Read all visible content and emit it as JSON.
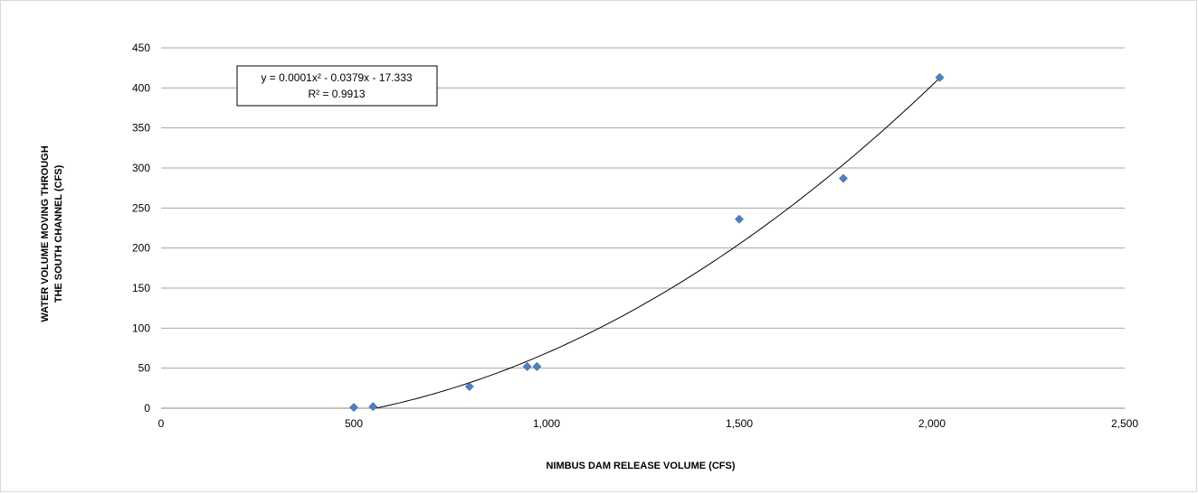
{
  "chart_data": {
    "type": "scatter",
    "xlabel": "NIMBUS DAM RELEASE VOLUME (CFS)",
    "ylabel_lines": [
      "WATER VOLUME MOVING THROUGH",
      "THE SOUTH CHANNEL (CFS)"
    ],
    "xlim": [
      0,
      2500
    ],
    "ylim": [
      0,
      450
    ],
    "x_ticks": [
      0,
      500,
      1000,
      1500,
      2000,
      2500
    ],
    "x_tick_labels": [
      "0",
      "500",
      "1,000",
      "1,500",
      "2,000",
      "2,500"
    ],
    "y_ticks": [
      0,
      50,
      100,
      150,
      200,
      250,
      300,
      350,
      400,
      450
    ],
    "y_tick_labels": [
      "0",
      "50",
      "100",
      "150",
      "200",
      "250",
      "300",
      "350",
      "400",
      "450"
    ],
    "grid": "horizontal",
    "series": [
      {
        "marker": "diamond",
        "color": "#4f81bd",
        "points": [
          {
            "x": 500,
            "y": 1
          },
          {
            "x": 550,
            "y": 2
          },
          {
            "x": 800,
            "y": 27
          },
          {
            "x": 950,
            "y": 52
          },
          {
            "x": 975,
            "y": 52
          },
          {
            "x": 1500,
            "y": 236
          },
          {
            "x": 1770,
            "y": 287
          },
          {
            "x": 2020,
            "y": 413
          }
        ]
      }
    ],
    "trendline": {
      "type": "polynomial",
      "x_range": [
        550,
        2020
      ],
      "color": "#000000",
      "label_lines": [
        "y = 0.0001x² - 0.0379x - 17.333",
        "R² = 0.9913"
      ]
    }
  }
}
